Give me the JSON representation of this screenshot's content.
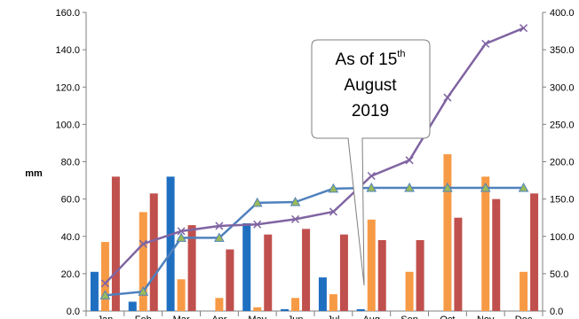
{
  "chart_data": {
    "type": "bar",
    "categories": [
      "Jan",
      "Feb",
      "Mar",
      "Apr",
      "May",
      "Jun",
      "Jul",
      "Aug",
      "Sep",
      "Oct",
      "Nov",
      "Dec"
    ],
    "ylabel": "mm",
    "ylim": [
      0,
      160
    ],
    "y_ticks": [
      "0.0",
      "20.0",
      "40.0",
      "60.0",
      "80.0",
      "100.0",
      "120.0",
      "140.0",
      "160.0"
    ],
    "y2lim": [
      0,
      400
    ],
    "y2_ticks": [
      "0.0",
      "50.0",
      "100.0",
      "150.0",
      "200.0",
      "250.0",
      "300.0",
      "350.0",
      "400.0"
    ],
    "grid": false,
    "legend": "none",
    "series": [
      {
        "kind": "bar",
        "axis": "left",
        "color": "#1f6fc1",
        "values": [
          21,
          5,
          72,
          0,
          47,
          1,
          18,
          1,
          null,
          null,
          null,
          null
        ]
      },
      {
        "kind": "bar",
        "axis": "left",
        "color": "#f79a45",
        "values": [
          37,
          53,
          17,
          7,
          2,
          7,
          9,
          49,
          21,
          84,
          72,
          21
        ]
      },
      {
        "kind": "bar",
        "axis": "left",
        "color": "#c0504d",
        "values": [
          72,
          63,
          46,
          33,
          41,
          44,
          41,
          38,
          38,
          50,
          60,
          63
        ]
      },
      {
        "kind": "line",
        "axis": "right",
        "color": "#4f81bd",
        "marker": "triangle",
        "marker_color": "#9bbb59",
        "values": [
          21,
          26,
          98,
          98,
          145,
          146,
          164,
          165,
          165,
          165,
          165,
          165
        ]
      },
      {
        "kind": "line",
        "axis": "right",
        "color": "#8064a2",
        "marker": "x",
        "values": [
          37,
          90,
          107,
          114,
          116,
          123,
          133,
          181,
          202,
          286,
          358,
          379
        ]
      }
    ],
    "annotations": [
      {
        "text": "As of 15",
        "sup": "th",
        "lines": [
          "August",
          "2019"
        ],
        "points_to": "Aug"
      }
    ]
  }
}
